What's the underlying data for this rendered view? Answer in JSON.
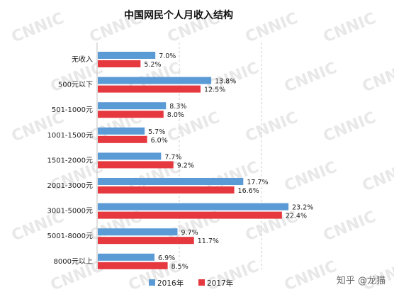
{
  "chart_data": {
    "type": "bar",
    "orientation": "horizontal",
    "title": "中国网民个人月收入结构",
    "categories": [
      "无收入",
      "500元以下",
      "501-1000元",
      "1001-1500元",
      "1501-2000元",
      "2001-3000元",
      "3001-5000元",
      "5001-8000元",
      "8000元以上"
    ],
    "series": [
      {
        "name": "2016年",
        "color": "#5b9bd5",
        "values": [
          7.0,
          13.8,
          8.3,
          5.7,
          7.7,
          17.7,
          23.2,
          9.7,
          6.9
        ],
        "labels": [
          "7.0%",
          "13.8%",
          "8.3%",
          "5.7%",
          "7.7%",
          "17.7%",
          "23.2%",
          "9.7%",
          "6.9%"
        ]
      },
      {
        "name": "2017年",
        "color": "#e5383f",
        "values": [
          5.2,
          12.5,
          8.0,
          6.0,
          9.2,
          16.6,
          22.4,
          11.7,
          8.5
        ],
        "labels": [
          "5.2%",
          "12.5%",
          "8.0%",
          "6.0%",
          "9.2%",
          "16.6%",
          "22.4%",
          "11.7%",
          "8.5%"
        ]
      }
    ],
    "xlim": [
      0,
      25
    ],
    "grid": true,
    "legend": "bottom",
    "watermark": "CNNIC",
    "credit": "知乎 @龙猫"
  }
}
